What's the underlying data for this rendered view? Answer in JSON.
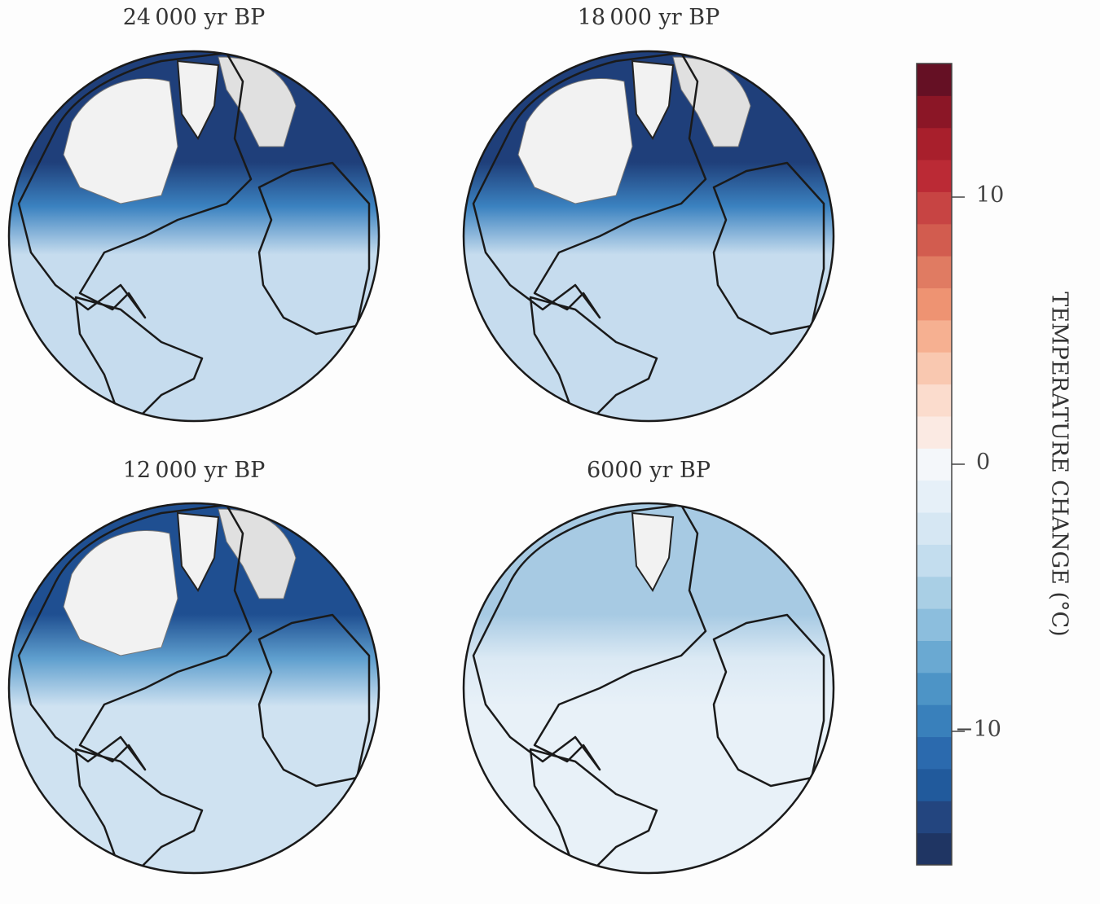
{
  "panels": [
    {
      "title": "24 000 yr BP",
      "ocean_color": "#c6dcee",
      "north_color": "#1f3f7a",
      "mid_color": "#3b82c0",
      "ice": true
    },
    {
      "title": "18 000 yr BP",
      "ocean_color": "#c6dcee",
      "north_color": "#1f3f7a",
      "mid_color": "#3b82c0",
      "ice": true
    },
    {
      "title": "12 000 yr BP",
      "ocean_color": "#cfe2f1",
      "north_color": "#1f4f91",
      "mid_color": "#5f9fce",
      "ice": true
    },
    {
      "title": "6000 yr BP",
      "ocean_color": "#e8f1f8",
      "north_color": "#a7cae3",
      "mid_color": "#dbe9f4",
      "ice": false
    }
  ],
  "colorbar": {
    "label": "TEMPERATURE CHANGE (°C)",
    "range": [
      -15,
      15
    ],
    "ticks": [
      {
        "value": 10,
        "label": "10"
      },
      {
        "value": 0,
        "label": "0"
      },
      {
        "value": -10,
        "label": "−10"
      }
    ],
    "colormap": "RdBu_r",
    "colors": [
      "#1f3563",
      "#23457f",
      "#215a9c",
      "#2b6aae",
      "#3980bb",
      "#4d94c6",
      "#6aa9d2",
      "#8cbedd",
      "#a9cfe5",
      "#c3ddee",
      "#d6e7f3",
      "#e6f0f8",
      "#f4f7fa",
      "#fbeae3",
      "#fbdccd",
      "#f9c8b0",
      "#f6b091",
      "#ee9372",
      "#e07b62",
      "#d25c4f",
      "#c74443",
      "#bb2a35",
      "#a81f2c",
      "#8b1626",
      "#651024"
    ]
  }
}
